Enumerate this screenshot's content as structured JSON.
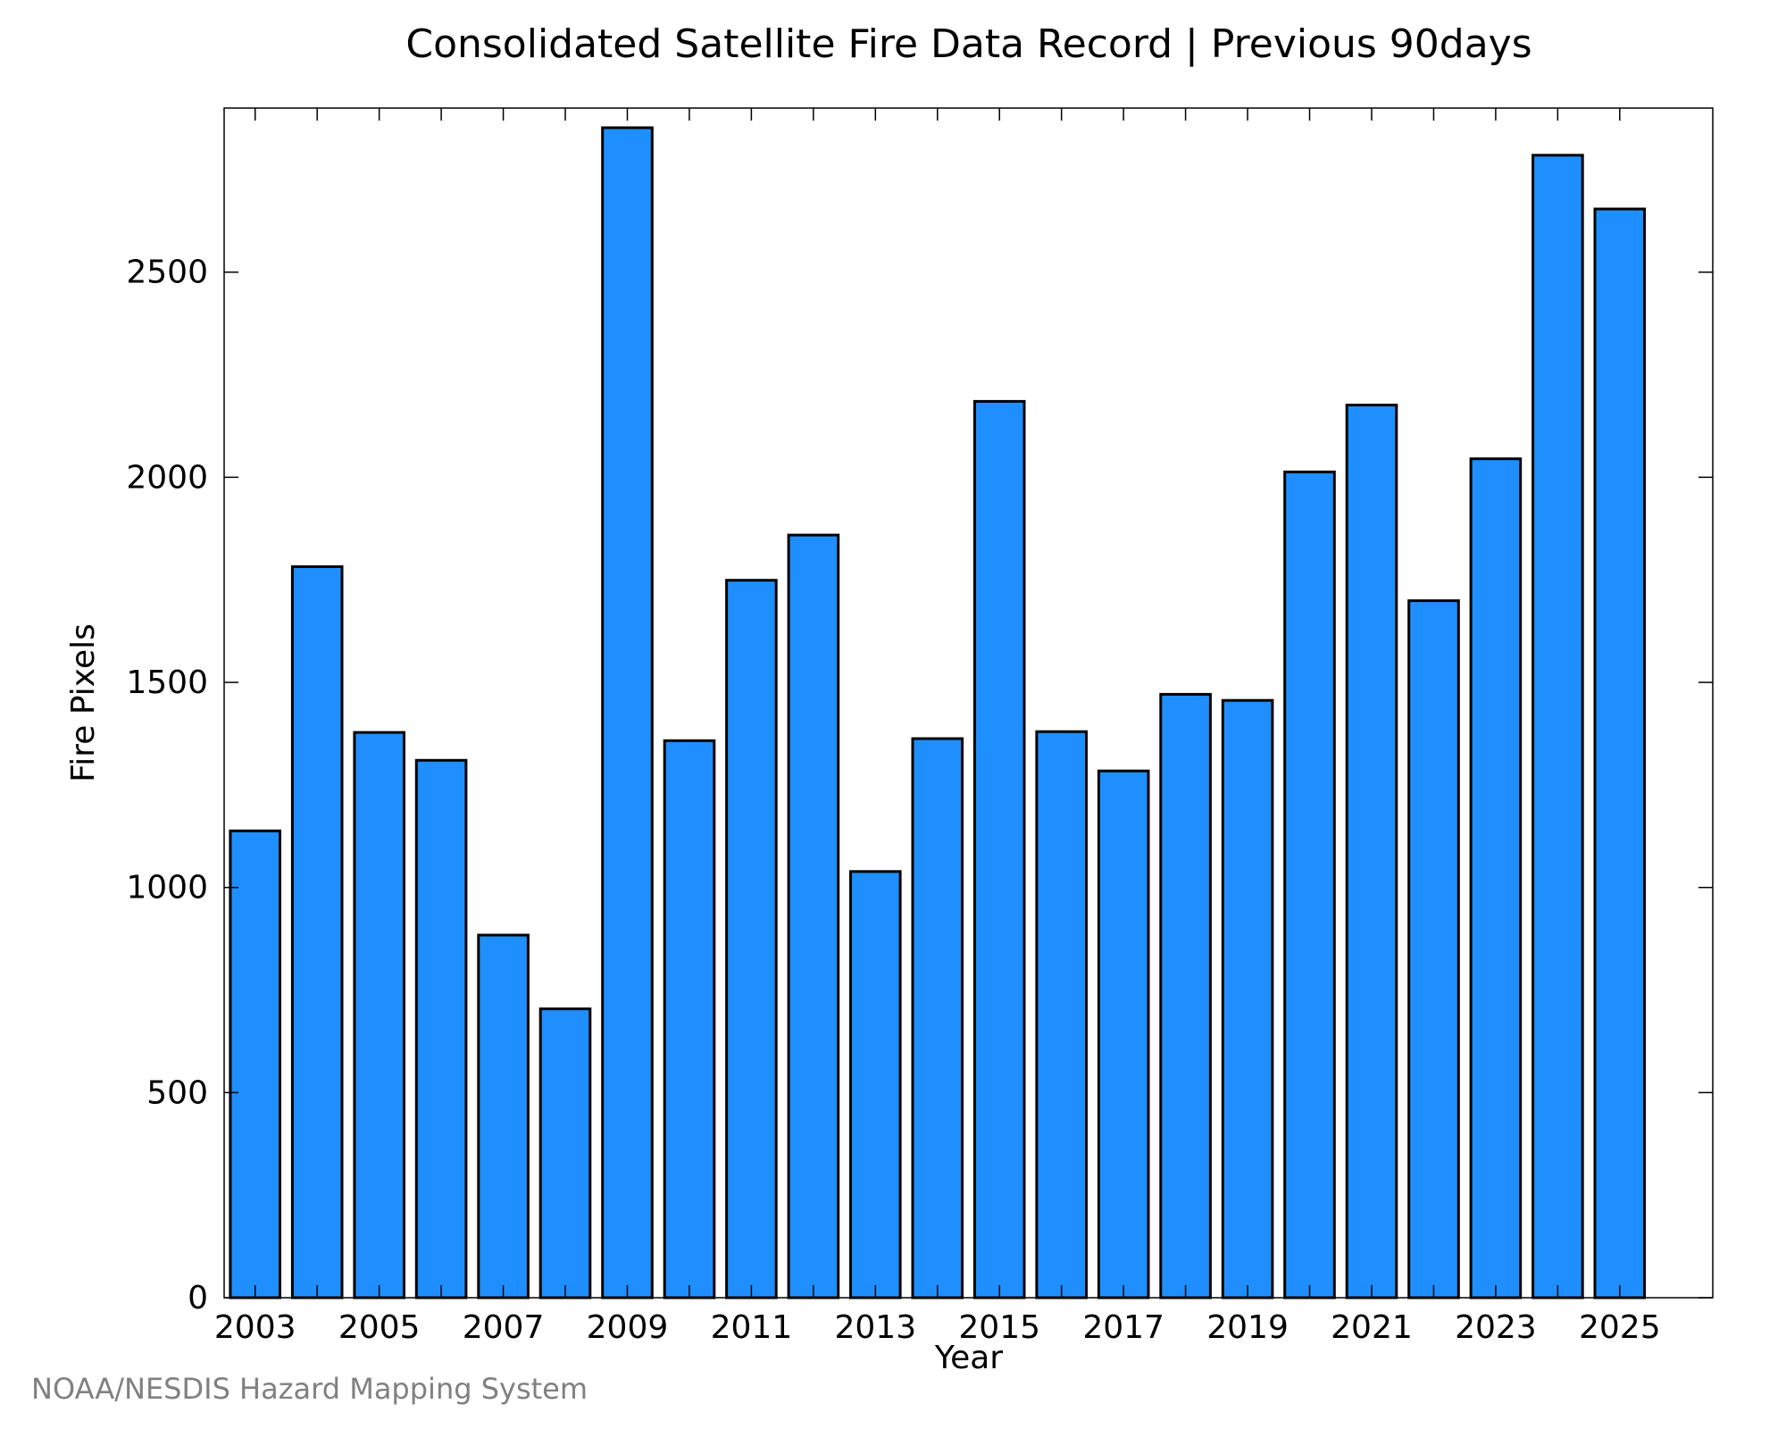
{
  "chart_data": {
    "type": "bar",
    "title": "Consolidated Satellite Fire Data Record | Previous 90days",
    "xlabel": "Year",
    "ylabel": "Fire Pixels",
    "categories": [
      "2003",
      "2004",
      "2005",
      "2006",
      "2007",
      "2008",
      "2009",
      "2010",
      "2011",
      "2012",
      "2013",
      "2014",
      "2015",
      "2016",
      "2017",
      "2018",
      "2019",
      "2020",
      "2021",
      "2022",
      "2023",
      "2024",
      "2025"
    ],
    "values": [
      1138,
      1782,
      1378,
      1310,
      884,
      704,
      2852,
      1358,
      1749,
      1859,
      1039,
      1363,
      2185,
      1380,
      1284,
      1471,
      1456,
      2013,
      2176,
      1699,
      2045,
      2785,
      2654
    ],
    "x_tick_labels": [
      "2003",
      "2005",
      "2007",
      "2009",
      "2011",
      "2013",
      "2015",
      "2017",
      "2019",
      "2021",
      "2023",
      "2025"
    ],
    "y_ticks": [
      0,
      500,
      1000,
      1500,
      2000,
      2500
    ],
    "ylim": [
      0,
      2900
    ],
    "grid": false,
    "legend": "none",
    "bar_color": "#1f8fff",
    "bar_edge_color": "#000000"
  },
  "footer": {
    "credit": "NOAA/NESDIS Hazard Mapping System"
  }
}
